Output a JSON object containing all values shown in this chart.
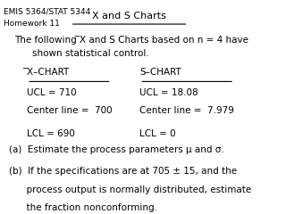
{
  "header_line1": "EMIS 5364/STAT 5344",
  "header_line2": "Homework 11",
  "title": "X and S Charts",
  "x_ucl": "UCL = 710",
  "x_cl": "Center line =  700",
  "x_lcl": "LCL = 690",
  "s_ucl": "UCL = 18.08",
  "s_cl": "Center line =  7.979",
  "s_lcl": "LCL = 0",
  "part_a": "(a)  Estimate the process parameters μ and σ.",
  "part_b1": "(b)  If the specifications are at 705 ± 15, and the",
  "part_b2": "      process output is normally distributed, estimate",
  "part_b3": "      the fraction nonconforming.",
  "bg_color": "#ffffff",
  "text_color": "#000000",
  "font_size": 7.5,
  "header_font_size": 6.5
}
